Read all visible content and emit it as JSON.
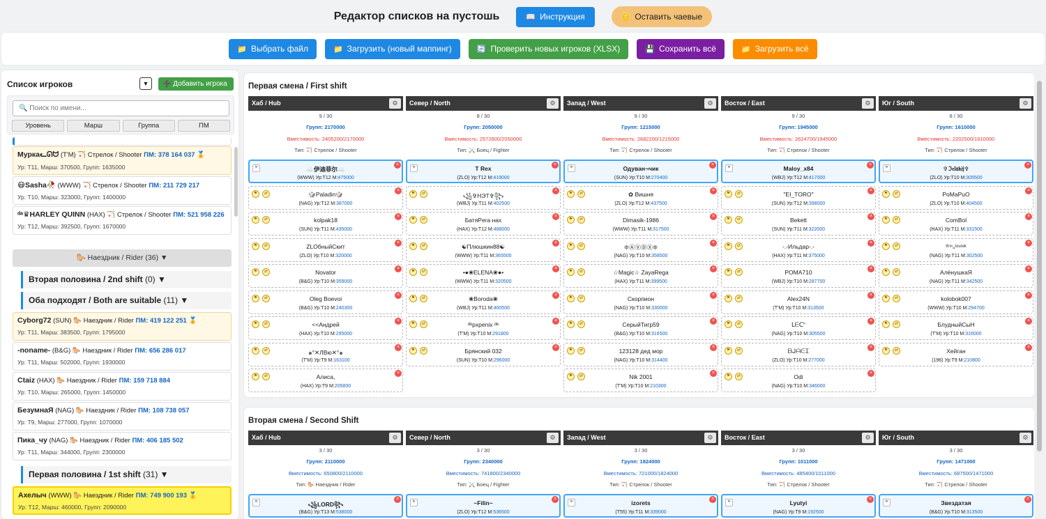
{
  "header": {
    "title": "Редактор списков на пустошь",
    "instructions_label": "Инструкция",
    "tip_label": "Оставить чаевые"
  },
  "toolbar": {
    "select_file": "Выбрать файл",
    "load_new_mapping": "Загрузить (новый маппинг)",
    "check_new_players": "Проверить новых игроков (XLSX)",
    "save_all": "Сохранить всё",
    "load_all": "Загрузить всё"
  },
  "sidebar": {
    "title": "Список игроков",
    "dropdown": "▼",
    "add_player": "➕ Добавить игрока",
    "search_placeholder": "🔍 Поиск по имени...",
    "sort_buttons": [
      "Уровень",
      "Марш",
      "Группа",
      "ПМ"
    ],
    "players_top": [
      {
        "name": "Муркаᓚᘏᗢ",
        "tag": "(T'M)",
        "role": "🏹 Стрелок / Shooter",
        "pm": "ПМ: 378 164 037",
        "stats": "Ур: T11, Марш: 370500, Групп: 1635000",
        "hl": true
      },
      {
        "name": "😷Sasha🥀",
        "tag": "(WWW)",
        "role": "🏹 Стрелок / Shooter",
        "pm": "ПМ: 211 729 217",
        "stats": "Ур: T10, Марш: 323000, Групп: 1400000",
        "hl": false
      },
      {
        "name": "ᵈᵃ♛HARLEY QUINN",
        "tag": "(HAX)",
        "role": "🏹 Стрелок / Shooter",
        "pm": "ПМ: 521 958 226",
        "stats": "Ур: T12, Марш: 392500, Групп: 1670000",
        "hl": false
      }
    ],
    "group_rider": {
      "label": "🐎 Наездник / Rider",
      "count": "(36) ▼"
    },
    "sub_2nd": {
      "label": "Вторая половина / 2nd shift",
      "count": "(0)  ▼"
    },
    "sub_both": {
      "label": "Оба подходят / Both are suitable",
      "count": "(11)  ▼"
    },
    "players_both": [
      {
        "name": "Cyborg72",
        "tag": "(SUN)",
        "role": "🐎 Наездник / Rider",
        "pm": "ПМ: 419 122 251",
        "stats": "Ур: T11, Марш: 383500, Групп: 1795000",
        "hl": true
      },
      {
        "name": "-noname-",
        "tag": "(B&G)",
        "role": "🐎 Наездник / Rider",
        "pm": "ПМ: 656 286 017",
        "stats": "Ур: T11, Марш: 502000, Групп: 1930000",
        "hl": false
      },
      {
        "name": "Ctaiz",
        "tag": "(HAX)",
        "role": "🐎 Наездник / Rider",
        "pm": "ПМ: 159 718 884",
        "stats": "Ур: T10, Марш: 265000, Групп: 1450000",
        "hl": false
      },
      {
        "name": "БезумнаЯ",
        "tag": "(NAG)",
        "role": "🐎 Наездник / Rider",
        "pm": "ПМ: 108 738 057",
        "stats": "Ур: T9, Марш: 277000, Групп: 1070000",
        "hl": false
      },
      {
        "name": "Пика_чу",
        "tag": "(NAG)",
        "role": "🐎 Наездник / Rider",
        "pm": "ПМ: 406 185 502",
        "stats": "Ур: T11, Марш: 344000, Групп: 2300000",
        "hl": false
      }
    ],
    "sub_1st": {
      "label": "Первая половина / 1st shift",
      "count": "(31)  ▼"
    },
    "player_active": {
      "name": "Ахелыч",
      "tag": "(WWW)",
      "role": "🐎 Наездник / Rider",
      "pm": "ПМ: 749 900 193",
      "stats": "Ур: T12, Марш: 460000, Групп: 2090000"
    }
  },
  "shifts": [
    {
      "title": "Первая смена / First shift",
      "columns": [
        {
          "name": "Хаб / Hub",
          "count": "9 / 30",
          "groups": "Групп: 2170000",
          "capacity": "Вместимость: 2405200/2170000",
          "cap_over": true,
          "type": "Тип: 🏹 Стрелок / Shooter",
          "cards": [
            {
              "n": "☁️伊迪菲尔☁️",
              "d": "(WWW) Ур:T12 М:",
              "m": "475000"
            },
            {
              "n": "🎲Paladin🎲",
              "d": "(NAG) Ур:T12 М:",
              "m": "387000"
            },
            {
              "n": "kolpak18",
              "d": "(SUN) Ур:T11 М:",
              "m": "435000"
            },
            {
              "n": "ZLOбныйСкит",
              "d": "(ZLO) Ур:T10 М:",
              "m": "320000"
            },
            {
              "n": "Novator",
              "d": "(B&G) Ур:T10 М:",
              "m": "359000"
            },
            {
              "n": "Oleg Boevoi",
              "d": "(B&G) Ур:T10 М:",
              "m": "240300"
            },
            {
              "n": "<<Андрей",
              "d": "(HAX) Ур:T10 М:",
              "m": "295000"
            },
            {
              "n": "๑°✕ЛВю✕°๑",
              "d": "(T'M) Ур:T9 М:",
              "m": "163100"
            },
            {
              "n": "Алиса,",
              "d": "(HAX) Ур:T9 М:",
              "m": "205800"
            }
          ]
        },
        {
          "name": "Север / North",
          "count": "8 / 30",
          "groups": "Групп: 2050000",
          "capacity": "Вместимость: 2572800/2050000",
          "cap_over": true,
          "type": "Тип: ⚔️ Боец / Fighter",
          "cards": [
            {
              "n": "T Rex",
              "d": "(ZLO) Ур:T12 М:",
              "m": "419000"
            },
            {
              "n": "꧁✞НЭТ✞꧂",
              "d": "(WBJ) Ур:T11 М:",
              "m": "402500"
            },
            {
              "n": "БатяPera нах",
              "d": "(HAX) Ур:T12 М:",
              "m": "488000"
            },
            {
              "n": "☯Плюшкин88☯",
              "d": "(WWW) Ур:T11 М:",
              "m": "365500"
            },
            {
              "n": "•●❀ELENA❀●•",
              "d": "(WWW) Ур:T11 М:",
              "m": "320500"
            },
            {
              "n": "❀Boroda❀",
              "d": "(WBJ) Ур:T11 М:",
              "m": "400500"
            },
            {
              "n": "ᵈᵉpxpenix ᵈᵉ",
              "d": "(T'M) Ур:T10 М:",
              "m": "291800"
            },
            {
              "n": "Брянский 032",
              "d": "(SUN) Ур:T10 М:",
              "m": "296000"
            }
          ]
        },
        {
          "name": "Запад / West",
          "count": "9 / 30",
          "groups": "Групп: 1215000",
          "capacity": "Вместимость: 2682200/1215000",
          "cap_over": true,
          "type": "Тип: 🏹 Стрелок / Shooter",
          "cards": [
            {
              "n": "Одуван¬чик",
              "d": "(SUN) Ур:T10 М:",
              "m": "270400"
            },
            {
              "n": "✿ Вишня",
              "d": "(ZLO) Ур:T12 М:",
              "m": "437500"
            },
            {
              "n": "Dimasik-1986",
              "d": "(WWW) Ур:T11 М:",
              "m": "317500"
            },
            {
              "n": "❊ⒶⓋⒹⓍ❊",
              "d": "(NAG) Ур:T10 М:",
              "m": "358500"
            },
            {
              "n": "☆Magic☆ ZayaRega",
              "d": "(HAX) Ур:T11 М:",
              "m": "399500"
            },
            {
              "n": "Скорпион",
              "d": "(NAG) Ур:T10 М:",
              "m": "330000"
            },
            {
              "n": "СерыйТигр59",
              "d": "(B&G) Ур:T10 М:",
              "m": "316500"
            },
            {
              "n": "123128 дед мор",
              "d": "(NAG) Ур:T10 М:",
              "m": "314400"
            },
            {
              "n": "Nik 2001",
              "d": "(T'M) Ур:T10 М:",
              "m": "210300"
            }
          ]
        },
        {
          "name": "Восток / East",
          "count": "9 / 30",
          "groups": "Групп: 1945000",
          "capacity": "Вместимость: 2624700/1945000",
          "cap_over": true,
          "type": "Тип: 🏹 Стрелок / Shooter",
          "cards": [
            {
              "n": "Maloy_x84",
              "d": "(WBJ) Ур:T12 М:",
              "m": "417000"
            },
            {
              "n": "\"EI_TORO\"",
              "d": "(SUN) Ур:T12 М:",
              "m": "398000"
            },
            {
              "n": "Bekett",
              "d": "(SUN) Ур:T11 М:",
              "m": "322000"
            },
            {
              "n": "-.-Ильдар-.-",
              "d": "(HAX) Ур:T11 М:",
              "m": "375000"
            },
            {
              "n": "POMA710",
              "d": "(WBJ) Ур:T10 М:",
              "m": "287700"
            },
            {
              "n": "Alex24N",
              "d": "(T'M) Ур:T10 М:",
              "m": "313500"
            },
            {
              "n": "ᒪᗴᑕᑋ",
              "d": "(NAG) Ур:T10 М:",
              "m": "305500"
            },
            {
              "n": "ᗷᒍᗩᕮᏆ",
              "d": "(ZLO) Ур:T10 М:",
              "m": "277000"
            },
            {
              "n": "Odi",
              "d": "(NAG) Ур:T10 М:",
              "m": "346000"
            }
          ]
        },
        {
          "name": "Юг / South",
          "count": "8 / 30",
          "groups": "Групп: 1610000",
          "capacity": "Вместимость: 2202500/1610000",
          "cap_over": true,
          "type": "Тип: 🏹 Стрелок / Shooter",
          "cards": [
            {
              "n": "✞ℑ𝔢𝔩𝔞𝔨𝔦𝔧✞",
              "d": "(ZLO) Ур:T10 М:",
              "m": "305500"
            },
            {
              "n": "PoMaPuO",
              "d": "(ZLO) Ур:T10 М:",
              "m": "404500"
            },
            {
              "n": "ComBol",
              "d": "(HAX) Ур:T11 М:",
              "m": "331500"
            },
            {
              "n": "ᵗʰⁱⁿ₄ᵗᵒᵘʳᵉᵏ",
              "d": "(NAG) Ур:T11 М:",
              "m": "302500"
            },
            {
              "n": "АлёнушкаЯ",
              "d": "(NAG) Ур:T11 М:",
              "m": "342500"
            },
            {
              "n": "kolobok007",
              "d": "(WWW) Ур:T10 М:",
              "m": "294700"
            },
            {
              "n": "БлудныйСыН",
              "d": "(T'M) Ур:T10 М:",
              "m": "316000"
            },
            {
              "n": "Хейган",
              "d": "(196) Ур:T9 М:",
              "m": "210800"
            }
          ]
        }
      ]
    },
    {
      "title": "Вторая смена / Second Shift",
      "columns": [
        {
          "name": "Хаб / Hub",
          "count": "3 / 30",
          "groups": "Групп: 2110000",
          "capacity": "Вместимость: 650800/2110000",
          "cap_over": false,
          "type": "Тип: 🐎 Наездник / Rider",
          "cards": [
            {
              "n": "꧁LORD꧂",
              "d": "(B&G) Ур:T13 М:",
              "m": "538000"
            }
          ]
        },
        {
          "name": "Север / North",
          "count": "3 / 30",
          "groups": "Групп: 2340000",
          "capacity": "Вместимость: 741800/2340000",
          "cap_over": false,
          "type": "Тип: ⚔️ Боец / Fighter",
          "cards": [
            {
              "n": "~Filin~",
              "d": "(ZLO) Ур:T12 М:",
              "m": "536500"
            }
          ]
        },
        {
          "name": "Запад / West",
          "count": "3 / 30",
          "groups": "Групп: 1824000",
          "capacity": "Вместимость: 721000/1824000",
          "cap_over": false,
          "type": "Тип: 🏹 Стрелок / Shooter",
          "cards": [
            {
              "n": "izorets",
              "d": "(T55) Ур:T11 М:",
              "m": "339000"
            }
          ]
        },
        {
          "name": "Восток / East",
          "count": "3 / 30",
          "groups": "Групп: 1011000",
          "capacity": "Вместимость: 485400/1011000",
          "cap_over": false,
          "type": "Тип: 🏹 Стрелок / Shooter",
          "cards": [
            {
              "n": "Lyutyi",
              "d": "(NAG) Ур:T9 М:",
              "m": "192500"
            }
          ]
        },
        {
          "name": "Юг / South",
          "count": "3 / 30",
          "groups": "Групп: 1471000",
          "capacity": "Вместимость: 687500/1471000",
          "cap_over": false,
          "type": "Тип: 🏹 Стрелок / Shooter",
          "cards": [
            {
              "n": "Звездатая",
              "d": "(B&G) Ур:T10 М:",
              "m": "313500"
            }
          ]
        }
      ]
    }
  ],
  "colors": {
    "blue": "#1e88e5",
    "green": "#43a047",
    "purple": "#7b1fa2",
    "orange": "#fb8c00",
    "red": "#e53935"
  }
}
